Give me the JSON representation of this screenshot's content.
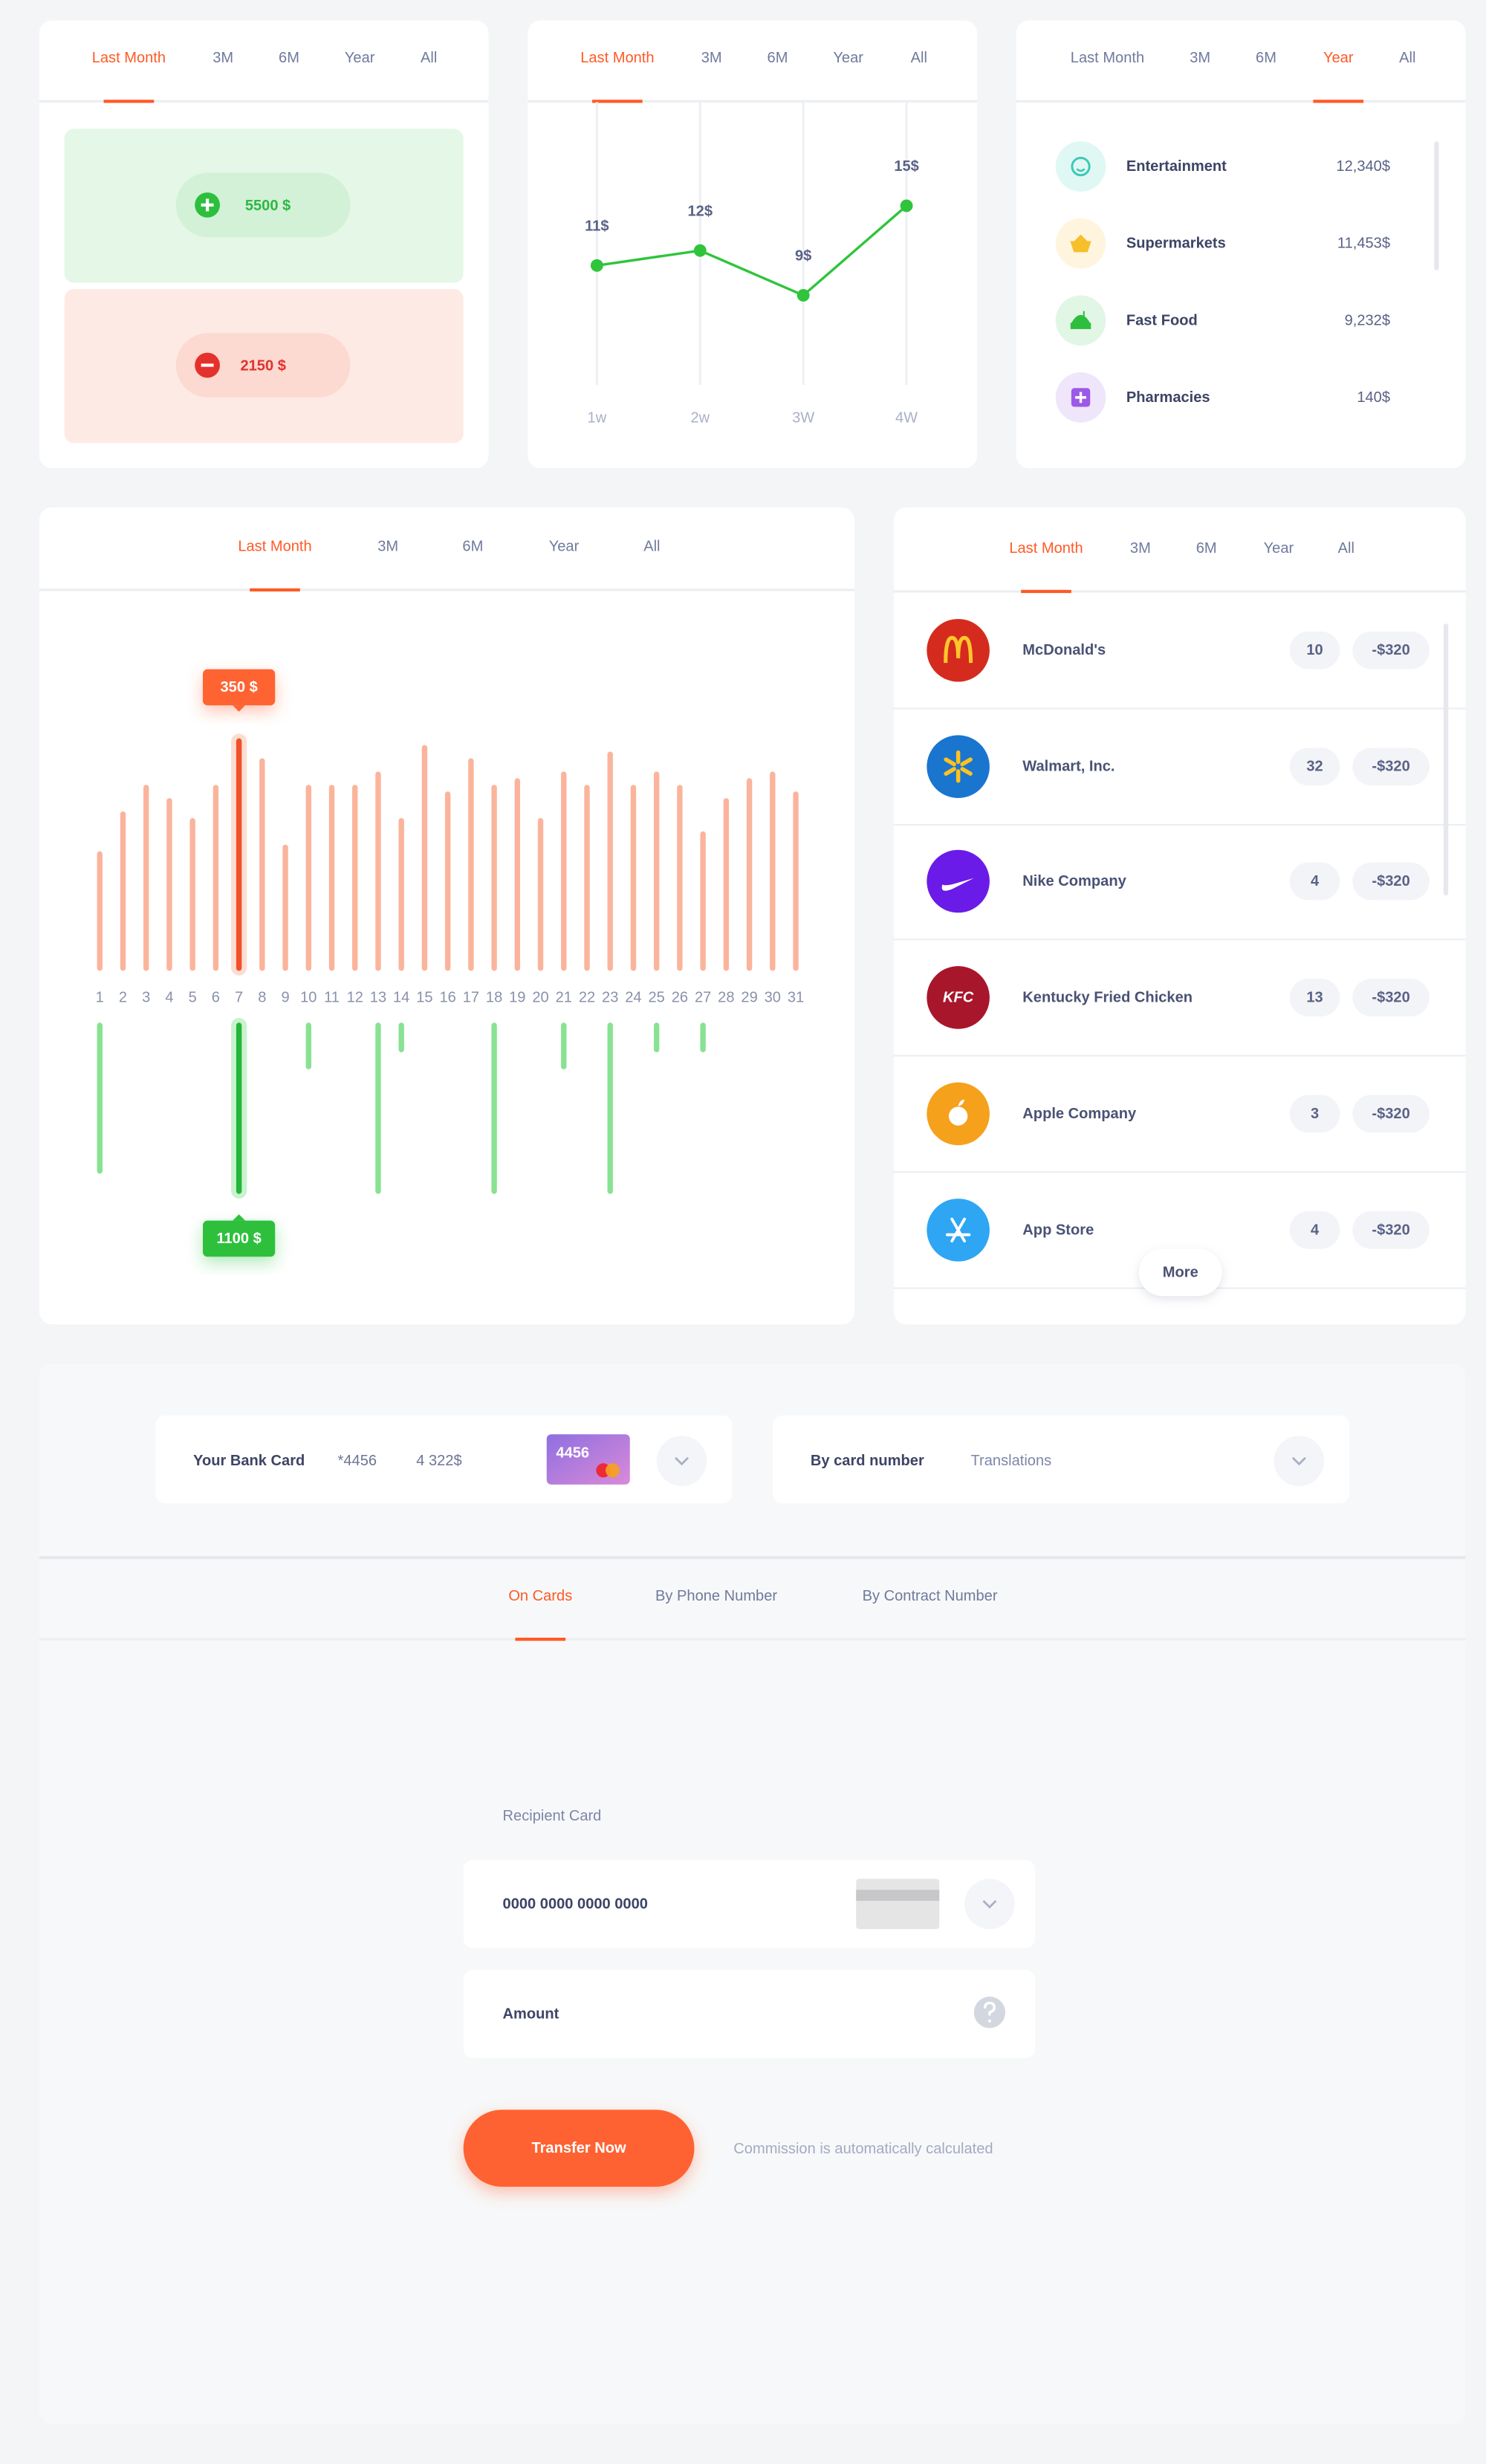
{
  "summary": {
    "tabs": [
      "Last Month",
      "3M",
      "6M",
      "Year",
      "All"
    ],
    "active_tab": 0,
    "income": "5500 $",
    "expense": "2150 $"
  },
  "trend": {
    "tabs": [
      "Last Month",
      "3M",
      "6M",
      "Year",
      "All"
    ],
    "active_tab": 0
  },
  "spending_categories": {
    "tabs": [
      "Last Month",
      "3M",
      "6M",
      "Year",
      "All"
    ],
    "active_tab": 3,
    "items": [
      {
        "name": "Entertainment",
        "amount": "12,340$"
      },
      {
        "name": "Supermarkets",
        "amount": "11,453$"
      },
      {
        "name": "Fast Food",
        "amount": "9,232$"
      },
      {
        "name": "Pharmacies",
        "amount": "140$"
      }
    ]
  },
  "daily": {
    "tabs": [
      "Last Month",
      "3M",
      "6M",
      "Year",
      "All"
    ],
    "active_tab": 0
  },
  "merchants": {
    "tabs": [
      "Last Month",
      "3M",
      "6M",
      "Year",
      "All"
    ],
    "active_tab": 0,
    "items": [
      {
        "name": "McDonald's",
        "count": "10",
        "amount": "-$320"
      },
      {
        "name": "Walmart, Inc.",
        "count": "32",
        "amount": "-$320"
      },
      {
        "name": "Nike Company",
        "count": "4",
        "amount": "-$320"
      },
      {
        "name": "Kentucky Fried Chicken",
        "logo_text": "KFC",
        "count": "13",
        "amount": "-$320"
      },
      {
        "name": "Apple Company",
        "count": "3",
        "amount": "-$320"
      },
      {
        "name": "App Store",
        "count": "4",
        "amount": "-$320"
      }
    ],
    "more": "More"
  },
  "chart_data": [
    {
      "type": "line",
      "categories": [
        "1w",
        "2w",
        "3W",
        "4W"
      ],
      "values": [
        11,
        12,
        9,
        15
      ],
      "value_labels": [
        "11$",
        "12$",
        "9$",
        "15$"
      ],
      "color": "#2fc43c",
      "grid": true
    },
    {
      "type": "bar",
      "categories": [
        "1",
        "2",
        "3",
        "4",
        "5",
        "6",
        "7",
        "8",
        "9",
        "10",
        "11",
        "12",
        "13",
        "14",
        "15",
        "16",
        "17",
        "18",
        "19",
        "20",
        "21",
        "22",
        "23",
        "24",
        "25",
        "26",
        "27",
        "28",
        "29",
        "30",
        "31"
      ],
      "series": [
        {
          "color": "#fbb49c",
          "values": [
            180,
            240,
            280,
            260,
            230,
            280,
            350,
            320,
            190,
            280,
            280,
            280,
            300,
            230,
            340,
            270,
            320,
            280,
            290,
            230,
            300,
            280,
            330,
            280,
            300,
            280,
            210,
            260,
            290,
            300,
            270
          ],
          "value_labels": [
            null,
            null,
            null,
            null,
            null,
            null,
            "350 $",
            null,
            null,
            null,
            null,
            null,
            null,
            null,
            null,
            null,
            null,
            null,
            null,
            null,
            null,
            null,
            null,
            null,
            null,
            null,
            null,
            null,
            null,
            null,
            null
          ]
        },
        {
          "color": "#88e292",
          "values": [
            970,
            null,
            null,
            null,
            null,
            null,
            1100,
            null,
            null,
            300,
            null,
            null,
            1100,
            190,
            null,
            null,
            null,
            1100,
            null,
            null,
            300,
            null,
            1100,
            null,
            190,
            null,
            190,
            null,
            null,
            null,
            null
          ],
          "value_labels": [
            null,
            null,
            null,
            null,
            null,
            null,
            "1100 $",
            null,
            null,
            null,
            null,
            null,
            null,
            null,
            null,
            null,
            null,
            null,
            null,
            null,
            null,
            null,
            null,
            null,
            null,
            null,
            null,
            null,
            null,
            null,
            null
          ]
        }
      ]
    }
  ],
  "transfer": {
    "card": {
      "label": "Your Bank Card",
      "number": "*4456",
      "balance": "4 322$",
      "card_number": "4456"
    },
    "method": {
      "label": "By card number",
      "value": "Translations"
    },
    "tabs": [
      "On Cards",
      "By Phone Number",
      "By Contract Number"
    ],
    "active_tab": 0,
    "recipient_label": "Recipient Card",
    "recipient_placeholder": "0000 0000 0000 0000",
    "amount_placeholder": "Amount",
    "button": "Transfer Now",
    "note": "Commission is automatically calculated"
  }
}
